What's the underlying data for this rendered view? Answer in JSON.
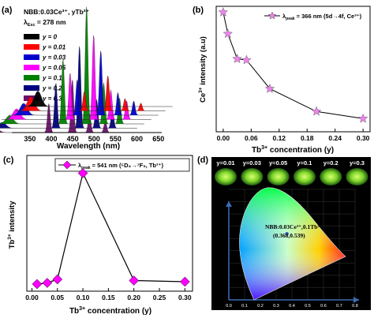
{
  "panels": {
    "a": {
      "label": "(a)"
    },
    "b": {
      "label": "(b)"
    },
    "c": {
      "label": "(c)"
    },
    "d": {
      "label": "(d)"
    }
  },
  "chart_data": [
    {
      "id": "a",
      "type": "line",
      "subtype": "3d-waterfall-spectra",
      "title": "NBB:0.03Ce³⁺, yTb³⁺",
      "excitation_label": "λ",
      "excitation_sub": "Exc",
      "excitation_value": " = 278 nm",
      "xlabel": "Wavelength (nm)",
      "xticks": [
        350,
        400,
        450,
        500,
        550,
        600,
        650
      ],
      "xlim": [
        330,
        680
      ],
      "series": [
        {
          "name": "y = 0",
          "color": "#000000",
          "ce_amp": 0.13,
          "tb_amp": 0.0
        },
        {
          "name": "y = 0.01",
          "color": "#ff0000",
          "ce_amp": 0.12,
          "tb_amp": 0.3
        },
        {
          "name": "y = 0.03",
          "color": "#0000cc",
          "ce_amp": 0.1,
          "tb_amp": 0.55
        },
        {
          "name": "y = 0.05",
          "color": "#ff00ff",
          "ce_amp": 0.09,
          "tb_amp": 0.72
        },
        {
          "name": "y = 0.1",
          "color": "#008000",
          "ce_amp": 0.07,
          "tb_amp": 1.0
        },
        {
          "name": "y = 0.2",
          "color": "#000080",
          "ce_amp": 0.05,
          "tb_amp": 0.7
        },
        {
          "name": "y = 0.3",
          "color": "#6b0f6b",
          "ce_amp": 0.04,
          "tb_amp": 0.45
        }
      ],
      "peaks_nm": [
        365,
        490,
        545,
        585,
        622
      ]
    },
    {
      "id": "b",
      "type": "line",
      "ylabel_base": "Ce",
      "ylabel_sup": "3+",
      "ylabel_rest": " intensity (a.u)",
      "xlabel_base": "Tb",
      "xlabel_sup": "3+",
      "xlabel_rest": " concentration (y)",
      "xticks": [
        0.0,
        0.06,
        0.12,
        0.18,
        0.24,
        0.3
      ],
      "xtick_labels": [
        "0.00",
        "0.06",
        "0.12",
        "0.18",
        "0.24",
        "0.30"
      ],
      "xlim": [
        -0.015,
        0.315
      ],
      "ylim": [
        0,
        1.05
      ],
      "legend_prefix": "λ",
      "legend_sub": "peak",
      "legend_text": " = 366 nm (5d→4f, Ce³⁺)",
      "legend_position": "top-right",
      "marker": "star",
      "marker_color": "#ee82ee",
      "x": [
        0.0,
        0.01,
        0.03,
        0.05,
        0.1,
        0.2,
        0.3
      ],
      "y": [
        1.0,
        0.82,
        0.61,
        0.6,
        0.36,
        0.17,
        0.11
      ]
    },
    {
      "id": "c",
      "type": "line",
      "ylabel_base": "Tb",
      "ylabel_sup": "3+",
      "ylabel_rest": " intensity",
      "xlabel_base": "Tb",
      "xlabel_sup": "3+",
      "xlabel_rest": " concentration (y)",
      "xticks": [
        0.0,
        0.05,
        0.1,
        0.15,
        0.2,
        0.25,
        0.3
      ],
      "xtick_labels": [
        "0.00",
        "0.05",
        "0.10",
        "0.15",
        "0.20",
        "0.25",
        "0.30"
      ],
      "xlim": [
        -0.01,
        0.315
      ],
      "ylim": [
        0,
        1.15
      ],
      "legend_prefix": "λ",
      "legend_sub": "peak",
      "legend_text": " = 541 nm (⁵D₄→⁷F₅, Tb³⁺)",
      "legend_position": "top-left",
      "marker": "diamond",
      "marker_color": "#ff00ff",
      "x": [
        0.01,
        0.03,
        0.05,
        0.1,
        0.2,
        0.3
      ],
      "y": [
        0.06,
        0.07,
        0.1,
        1.0,
        0.09,
        0.08
      ]
    },
    {
      "id": "d",
      "type": "scatter",
      "subtype": "cie-chromaticity",
      "photo_labels": [
        "y=0.01",
        "y=0.03",
        "y=0.05",
        "y=0.1",
        "y=0.2",
        "y=0.3"
      ],
      "annotation_line1": "NBB:0.03Ce³⁺,0.1Tb³⁺",
      "annotation_line2": "(0.368,0.539)",
      "point": {
        "x": 0.368,
        "y": 0.539
      },
      "xticks": [
        "0.0",
        "0.1",
        "0.2",
        "0.3",
        "0.4",
        "0.5",
        "0.6",
        "0.7",
        "0.8"
      ],
      "xlim": [
        0,
        0.8
      ],
      "ylim": [
        0,
        0.9
      ]
    }
  ]
}
